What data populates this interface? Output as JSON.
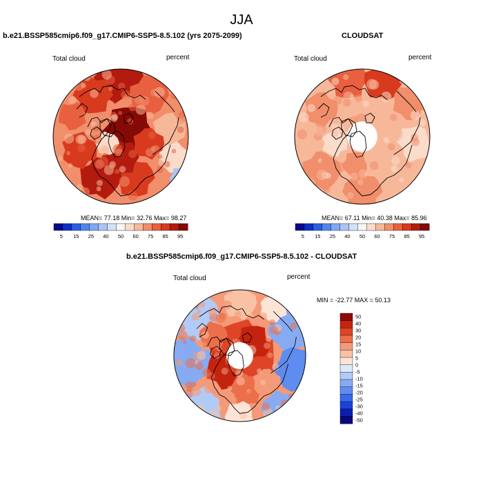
{
  "title": "JJA",
  "panels": [
    {
      "title": "b.e21.BSSP585cmip6.f09_g17.CMIP6-SSP5-8.5.102 (yrs 2075-2099)",
      "left_label": "Total cloud",
      "right_label": "percent",
      "stats": "MEAN= 77.18  Min= 32.76  Max= 98.27",
      "colorbar_ticks": [
        "5",
        "15",
        "25",
        "40",
        "50",
        "60",
        "75",
        "85",
        "95"
      ]
    },
    {
      "title": "CLOUDSAT",
      "left_label": "Total cloud",
      "right_label": "percent",
      "stats": "MEAN= 67.11  Min= 40.38  Max= 85.96",
      "colorbar_ticks": [
        "5",
        "15",
        "25",
        "40",
        "50",
        "60",
        "75",
        "85",
        "95"
      ]
    },
    {
      "title": "b.e21.BSSP585cmip6.f09_g17.CMIP6-SSP5-8.5.102 - CLOUDSAT",
      "left_label": "Total cloud",
      "right_label": "percent",
      "stats": "MIN = -22.77 MAX =  50.13",
      "colorbar_ticks": [
        "50",
        "40",
        "30",
        "20",
        "15",
        "10",
        "5",
        "0",
        "-5",
        "-10",
        "-15",
        "-20",
        "-25",
        "-30",
        "-40",
        "-50"
      ]
    }
  ],
  "colors": {
    "seq": [
      "#08088f",
      "#0c2fc4",
      "#2a5fe0",
      "#4f86ee",
      "#7fa8f2",
      "#aac5f5",
      "#d2e2f8",
      "#f5f5f5",
      "#fbdccb",
      "#f7b89a",
      "#f18e6b",
      "#e8603f",
      "#d83a1e",
      "#b41b0f",
      "#850905"
    ],
    "div": [
      "#08087a",
      "#0a1fb0",
      "#1a44d8",
      "#3a6ae8",
      "#5f8cef",
      "#86abf2",
      "#b2cbf6",
      "#dce8fb",
      "#fde4d6",
      "#f9c2a5",
      "#f49a78",
      "#ec6f4c",
      "#de4526",
      "#c4240f",
      "#8e0a05"
    ]
  }
}
